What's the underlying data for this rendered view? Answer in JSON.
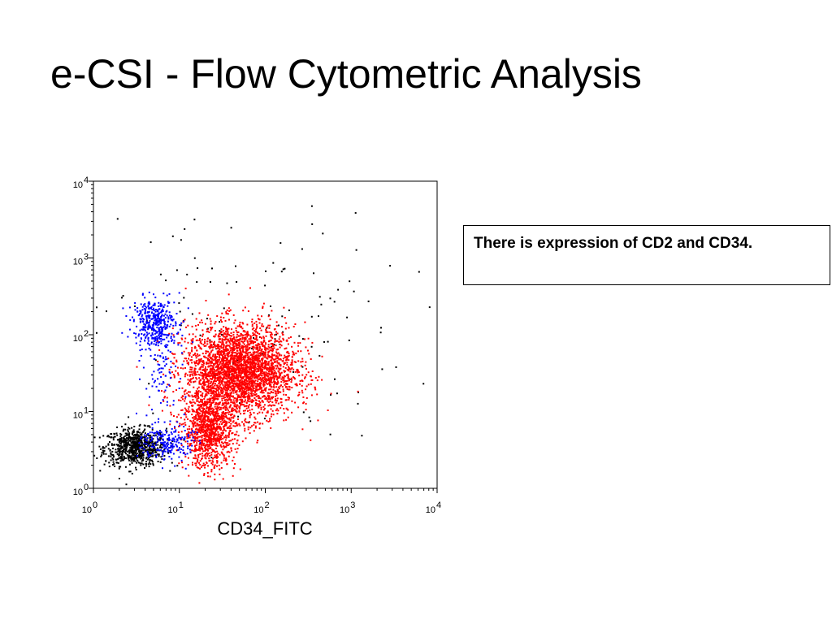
{
  "slide": {
    "title": "e-CSI - Flow Cytometric Analysis",
    "note": "There is expression of CD2 and CD34."
  },
  "chart_data": {
    "type": "scatter",
    "xlabel": "CD34_FITC",
    "ylabel": "",
    "xscale": "log",
    "yscale": "log",
    "xlim": [
      1,
      10000
    ],
    "ylim": [
      1,
      10000
    ],
    "grid": false,
    "tick_base": "10",
    "x_ticks": [
      {
        "value": 1,
        "exponent": "0"
      },
      {
        "value": 10,
        "exponent": "1"
      },
      {
        "value": 100,
        "exponent": "2"
      },
      {
        "value": 1000,
        "exponent": "3"
      },
      {
        "value": 10000,
        "exponent": "4"
      }
    ],
    "y_ticks": [
      {
        "value": 1,
        "exponent": "0"
      },
      {
        "value": 10,
        "exponent": "1"
      },
      {
        "value": 100,
        "exponent": "2"
      },
      {
        "value": 1000,
        "exponent": "3"
      },
      {
        "value": 10000,
        "exponent": "4"
      }
    ],
    "series": [
      {
        "color": "#000000",
        "point_count": 900,
        "clusters": [
          {
            "center": [
              3,
              3.5
            ],
            "spread_log": [
              0.18,
              0.12
            ],
            "weight": 0.85
          },
          {
            "center": [
              60,
              120
            ],
            "spread_log": [
              0.9,
              0.75
            ],
            "weight": 0.15
          }
        ]
      },
      {
        "color": "#0000ff",
        "point_count": 700,
        "clusters": [
          {
            "center": [
              5,
              150
            ],
            "spread_log": [
              0.12,
              0.15
            ],
            "weight": 0.55
          },
          {
            "center": [
              7,
              4
            ],
            "spread_log": [
              0.15,
              0.12
            ],
            "weight": 0.3
          },
          {
            "center": [
              6.5,
              40
            ],
            "spread_log": [
              0.12,
              0.35
            ],
            "weight": 0.15
          }
        ]
      },
      {
        "color": "#ff0000",
        "point_count": 4200,
        "clusters": [
          {
            "center": [
              50,
              35
            ],
            "spread_log": [
              0.32,
              0.3
            ],
            "weight": 0.75
          },
          {
            "center": [
              22,
              6
            ],
            "spread_log": [
              0.15,
              0.25
            ],
            "weight": 0.25
          }
        ]
      }
    ]
  }
}
